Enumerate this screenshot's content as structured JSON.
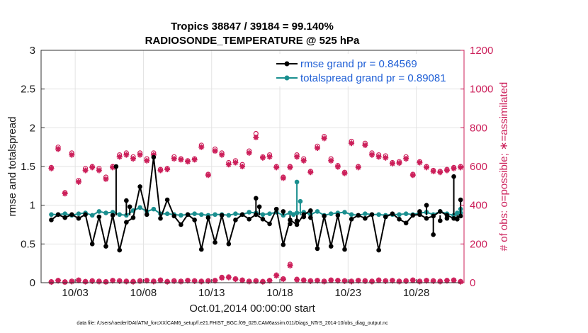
{
  "chart_data": {
    "type": "line",
    "title": "Tropics 38847 / 39184 = 99.140%",
    "subtitle": "RADIOSONDE_TEMPERATURE @ 525 hPa",
    "xlabel": "Oct.01,2014 00:00:00 start",
    "ylabel_left": "rmse and totalspread",
    "ylabel_right": "# of obs: o=possible; ∗=assimilated",
    "ylim_left": [
      0,
      3
    ],
    "ylim_right": [
      0,
      1200
    ],
    "xlim": [
      0.5,
      31.5
    ],
    "x_ticks": [
      {
        "value": 3,
        "label": "10/03"
      },
      {
        "value": 8,
        "label": "10/08"
      },
      {
        "value": 13,
        "label": "10/13"
      },
      {
        "value": 18,
        "label": "10/18"
      },
      {
        "value": 23,
        "label": "10/23"
      },
      {
        "value": 28,
        "label": "10/28"
      }
    ],
    "y_ticks_left": [
      "0",
      "0.5",
      "1",
      "1.5",
      "2",
      "2.5",
      "3"
    ],
    "y_ticks_right": [
      "0",
      "200",
      "400",
      "600",
      "800",
      "1000",
      "1200"
    ],
    "grid": true,
    "legend": {
      "position": "top-right",
      "entries": [
        "rmse grand pr = 0.84569",
        "totalspread grand pr = 0.89081"
      ]
    },
    "footer": "data file: /Users/raeder/DAI/ATM_forcXX/CAM6_setup/f.e21.FHIST_BGC.f09_025.CAM6assim.011/Diags_NTrS_2014-10/obs_diag_output.nc",
    "colors": {
      "rmse": "#000000",
      "totalspread": "#1a8f8f",
      "obs": "#cc1f5a",
      "grid": "#e3e3e3"
    },
    "rmse": {
      "x": [
        1.25,
        1.75,
        2.25,
        2.75,
        3.25,
        3.75,
        4.25,
        4.75,
        5.25,
        5.75,
        6.25,
        6.75,
        7.25,
        7.75,
        8.25,
        8.75,
        9.25,
        9.75,
        10.25,
        10.75,
        11.25,
        11.75,
        12.25,
        12.75,
        13.25,
        13.75,
        14.25,
        14.75,
        15.25,
        15.75,
        16.25,
        16.75,
        17.25,
        17.75,
        18.25,
        18.75,
        19.25,
        19.75,
        20.25,
        20.75,
        21.25,
        21.75,
        22.25,
        22.75,
        23.25,
        23.75,
        24.25,
        24.75,
        25.25,
        25.75,
        26.25,
        26.75,
        27.25,
        27.75,
        28.25,
        28.75,
        29.25,
        29.75,
        30.25,
        30.75,
        31.25
      ],
      "values": [
        0.81,
        0.88,
        0.84,
        0.88,
        0.83,
        0.88,
        0.5,
        0.85,
        0.47,
        0.87,
        0.42,
        0.78,
        0.84,
        1.24,
        0.88,
        1.62,
        0.83,
        1.07,
        0.86,
        0.75,
        0.88,
        0.81,
        0.43,
        0.84,
        0.52,
        0.87,
        0.5,
        0.81,
        0.88,
        0.82,
        0.88,
        0.82,
        0.76,
        0.95,
        0.49,
        0.81,
        0.75,
        0.88,
        0.93,
        0.44,
        0.86,
        0.47,
        0.87,
        0.43,
        0.82,
        0.87,
        0.83,
        0.88,
        0.42,
        0.85,
        0.89,
        0.82,
        0.77,
        0.87,
        0.88,
        0.83,
        0.86,
        0.92,
        0.87,
        0.83,
        0.86
      ]
    },
    "totalspread": {
      "x": [
        1.25,
        1.75,
        2.25,
        2.75,
        3.25,
        3.75,
        4.25,
        4.75,
        5.25,
        5.75,
        6.25,
        6.75,
        7.25,
        7.75,
        8.25,
        8.75,
        9.25,
        9.75,
        10.25,
        10.75,
        11.25,
        11.75,
        12.25,
        12.75,
        13.25,
        13.75,
        14.25,
        14.75,
        15.25,
        15.75,
        16.25,
        16.75,
        17.25,
        17.75,
        18.25,
        18.75,
        19.25,
        19.75,
        20.25,
        20.75,
        21.25,
        21.75,
        22.25,
        22.75,
        23.25,
        23.75,
        24.25,
        24.75,
        25.25,
        25.75,
        26.25,
        26.75,
        27.25,
        27.75,
        28.25,
        28.75,
        29.25,
        29.75,
        30.25,
        30.75,
        31.25
      ],
      "values": [
        0.88,
        0.88,
        0.89,
        0.87,
        0.89,
        0.9,
        0.87,
        0.92,
        0.9,
        0.91,
        0.88,
        0.87,
        0.93,
        0.97,
        0.92,
        0.95,
        0.89,
        0.89,
        0.88,
        0.87,
        0.88,
        0.89,
        0.88,
        0.87,
        0.88,
        0.88,
        0.87,
        0.89,
        0.88,
        0.91,
        0.9,
        0.88,
        0.89,
        0.91,
        0.87,
        0.9,
        0.9,
        0.91,
        0.88,
        0.92,
        0.87,
        0.89,
        0.9,
        0.91,
        0.88,
        0.87,
        0.89,
        0.88,
        0.88,
        0.87,
        0.88,
        0.88,
        0.89,
        0.88,
        0.9,
        0.91,
        0.88,
        0.92,
        0.89,
        0.87,
        0.9
      ]
    },
    "rmse_extra": [
      {
        "x": 18.25,
        "value": 0.92
      },
      {
        "x": 18.75,
        "value": 0.76
      },
      {
        "x": 19.25,
        "value": 0.8
      },
      {
        "x": 19.75,
        "value": 0.85
      },
      {
        "x": 20.25,
        "value": 0.84
      },
      {
        "x": 28.25,
        "value": 0.92
      },
      {
        "x": 28.75,
        "value": 1.0
      },
      {
        "x": 29.25,
        "value": 0.62
      },
      {
        "x": 29.75,
        "value": 0.8
      },
      {
        "x": 30.25,
        "value": 0.83
      },
      {
        "x": 30.75,
        "value": 1.37
      },
      {
        "x": 31.0,
        "value": 0.82
      },
      {
        "x": 31.25,
        "value": 1.07
      },
      {
        "x": 16.25,
        "value": 1.09
      },
      {
        "x": 16.5,
        "value": 0.98
      },
      {
        "x": 6.75,
        "value": 1.06
      },
      {
        "x": 7.0,
        "value": 0.98
      },
      {
        "x": 6.0,
        "value": 1.5
      }
    ],
    "totalspread_extra": [
      {
        "x": 19.25,
        "value": 1.3
      },
      {
        "x": 19.5,
        "value": 1.05
      },
      {
        "x": 19.0,
        "value": 0.88
      },
      {
        "x": 31.0,
        "value": 0.9
      },
      {
        "x": 31.25,
        "value": 0.95
      }
    ],
    "obs_possible": {
      "x": [
        1.25,
        1.75,
        2.25,
        2.75,
        3.25,
        3.75,
        4.25,
        4.75,
        5.25,
        5.75,
        6.25,
        6.75,
        7.25,
        7.75,
        8.25,
        8.75,
        9.25,
        9.75,
        10.25,
        10.75,
        11.25,
        11.75,
        12.25,
        12.75,
        13.25,
        13.75,
        14.25,
        14.75,
        15.25,
        15.75,
        16.25,
        16.75,
        17.25,
        17.75,
        18.25,
        18.75,
        19.25,
        19.75,
        20.25,
        20.75,
        21.25,
        21.75,
        22.25,
        22.75,
        23.25,
        23.75,
        24.25,
        24.75,
        25.25,
        25.75,
        26.25,
        26.75,
        27.25,
        27.75,
        28.25,
        28.75,
        29.25,
        29.75,
        30.25,
        30.75,
        31.25
      ],
      "values": [
        595,
        700,
        465,
        670,
        528,
        590,
        600,
        590,
        545,
        600,
        660,
        670,
        650,
        670,
        640,
        670,
        585,
        590,
        650,
        640,
        630,
        640,
        710,
        560,
        690,
        670,
        620,
        630,
        610,
        680,
        770,
        650,
        660,
        600,
        545,
        600,
        660,
        640,
        575,
        705,
        755,
        640,
        605,
        570,
        730,
        600,
        720,
        670,
        660,
        655,
        620,
        625,
        650,
        560,
        625,
        600,
        580,
        575,
        585,
        595,
        600
      ]
    },
    "obs_assimilated": {
      "x": [
        1.25,
        1.75,
        2.25,
        2.75,
        3.25,
        3.75,
        4.25,
        4.75,
        5.25,
        5.75,
        6.25,
        6.75,
        7.25,
        7.75,
        8.25,
        8.75,
        9.25,
        9.75,
        10.25,
        10.75,
        11.25,
        11.75,
        12.25,
        12.75,
        13.25,
        13.75,
        14.25,
        14.75,
        15.25,
        15.75,
        16.25,
        16.75,
        17.25,
        17.75,
        18.25,
        18.75,
        19.25,
        19.75,
        20.25,
        20.75,
        21.25,
        21.75,
        22.25,
        22.75,
        23.25,
        23.75,
        24.25,
        24.75,
        25.25,
        25.75,
        26.25,
        26.75,
        27.25,
        27.75,
        28.25,
        28.75,
        29.25,
        29.75,
        30.25,
        30.75,
        31.25
      ],
      "values": [
        590,
        690,
        460,
        660,
        520,
        580,
        595,
        580,
        535,
        595,
        650,
        660,
        640,
        660,
        630,
        660,
        580,
        585,
        640,
        635,
        625,
        635,
        700,
        555,
        680,
        660,
        610,
        620,
        600,
        670,
        750,
        645,
        650,
        595,
        540,
        595,
        650,
        630,
        570,
        695,
        745,
        630,
        598,
        565,
        720,
        595,
        710,
        660,
        650,
        645,
        615,
        618,
        640,
        555,
        620,
        595,
        575,
        570,
        580,
        590,
        595
      ]
    },
    "obs_low_possible": {
      "x": [
        1.25,
        1.75,
        2.25,
        2.75,
        3.25,
        3.75,
        4.25,
        4.75,
        5.25,
        5.75,
        6.25,
        6.75,
        7.25,
        7.75,
        8.25,
        8.75,
        9.25,
        9.75,
        10.25,
        10.75,
        11.25,
        11.75,
        12.25,
        12.75,
        13.25,
        13.75,
        14.25,
        14.75,
        15.25,
        15.75,
        16.25,
        16.75,
        17.25,
        17.75,
        18.25,
        18.75,
        19.25,
        19.75,
        20.25,
        20.75,
        21.25,
        21.75,
        22.25,
        22.75,
        23.25,
        23.75,
        24.25,
        24.75,
        25.25,
        25.75,
        26.25,
        26.75,
        27.25,
        27.75,
        28.25,
        28.75,
        29.25,
        29.75,
        30.25,
        30.75,
        31.25
      ],
      "values": [
        5,
        12,
        4,
        8,
        14,
        6,
        10,
        8,
        5,
        12,
        10,
        8,
        6,
        10,
        12,
        8,
        14,
        6,
        10,
        8,
        12,
        10,
        8,
        10,
        12,
        28,
        30,
        20,
        14,
        8,
        10,
        6,
        12,
        40,
        20,
        95,
        18,
        14,
        10,
        12,
        8,
        14,
        12,
        10,
        8,
        12,
        10,
        8,
        14,
        10,
        12,
        8,
        10,
        14,
        8,
        12,
        10,
        8,
        12,
        14,
        6
      ]
    },
    "obs_low_assimilated": {
      "x": [
        1.25,
        1.75,
        2.25,
        2.75,
        3.25,
        3.75,
        4.25,
        4.75,
        5.25,
        5.75,
        6.25,
        6.75,
        7.25,
        7.75,
        8.25,
        8.75,
        9.25,
        9.75,
        10.25,
        10.75,
        11.25,
        11.75,
        12.25,
        12.75,
        13.25,
        13.75,
        14.25,
        14.75,
        15.25,
        15.75,
        16.25,
        16.75,
        17.25,
        17.75,
        18.25,
        18.75,
        19.25,
        19.75,
        20.25,
        20.75,
        21.25,
        21.75,
        22.25,
        22.75,
        23.25,
        23.75,
        24.25,
        24.75,
        25.25,
        25.75,
        26.25,
        26.75,
        27.25,
        27.75,
        28.25,
        28.75,
        29.25,
        29.75,
        30.25,
        30.75,
        31.25
      ],
      "values": [
        3,
        10,
        3,
        6,
        12,
        5,
        8,
        6,
        4,
        10,
        8,
        6,
        5,
        8,
        10,
        6,
        12,
        5,
        8,
        6,
        10,
        8,
        6,
        8,
        10,
        25,
        27,
        18,
        12,
        6,
        8,
        5,
        10,
        36,
        18,
        88,
        15,
        12,
        8,
        10,
        6,
        12,
        10,
        8,
        6,
        10,
        8,
        6,
        12,
        8,
        10,
        6,
        8,
        12,
        6,
        10,
        8,
        6,
        10,
        12,
        5
      ]
    }
  }
}
